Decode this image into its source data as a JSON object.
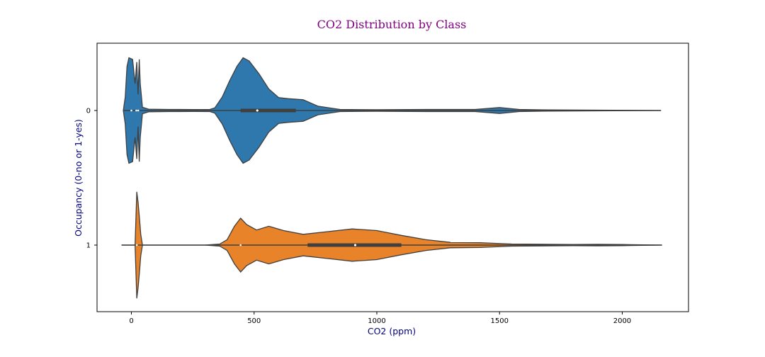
{
  "chart_data": {
    "type": "violin",
    "title": "CO2 Distribution by Class",
    "xlabel": "CO2 (ppm)",
    "ylabel": "Occupancy (0-no or 1-yes)",
    "xlim": [
      -140,
      2270
    ],
    "x_ticks": [
      0,
      500,
      1000,
      1500,
      2000
    ],
    "categories": [
      "0",
      "1"
    ],
    "grid": false,
    "orientation": "horizontal",
    "colors": {
      "0": "#2f78ad",
      "1": "#e8832a",
      "title": "#800080",
      "axis_label": "#000080",
      "outline": "#3f3f3f"
    },
    "violins": [
      {
        "category": "0",
        "color": "#2f78ad",
        "whisker": [
          -33,
          2158
        ],
        "box": {
          "q1": 445,
          "median": 513,
          "q3": 670
        },
        "density": [
          [
            -33,
            0.0
          ],
          [
            -25,
            0.25
          ],
          [
            -18,
            0.82
          ],
          [
            -10,
            0.98
          ],
          [
            5,
            0.95
          ],
          [
            15,
            0.5
          ],
          [
            22,
            0.9
          ],
          [
            27,
            0.3
          ],
          [
            32,
            0.95
          ],
          [
            36,
            0.5
          ],
          [
            45,
            0.06
          ],
          [
            70,
            0.025
          ],
          [
            150,
            0.02
          ],
          [
            250,
            0.018
          ],
          [
            320,
            0.02
          ],
          [
            340,
            0.05
          ],
          [
            370,
            0.25
          ],
          [
            400,
            0.55
          ],
          [
            430,
            0.82
          ],
          [
            455,
            0.98
          ],
          [
            480,
            0.92
          ],
          [
            520,
            0.68
          ],
          [
            560,
            0.4
          ],
          [
            600,
            0.24
          ],
          [
            640,
            0.22
          ],
          [
            700,
            0.2
          ],
          [
            760,
            0.08
          ],
          [
            850,
            0.02
          ],
          [
            1000,
            0.015
          ],
          [
            1200,
            0.02
          ],
          [
            1400,
            0.02
          ],
          [
            1500,
            0.055
          ],
          [
            1580,
            0.02
          ],
          [
            1700,
            0.01
          ],
          [
            1900,
            0.006
          ],
          [
            2158,
            0.0
          ]
        ],
        "outlier_markers": [
          0,
          20,
          28
        ]
      },
      {
        "category": "1",
        "color": "#e8832a",
        "whisker": [
          -40,
          2162
        ],
        "box": {
          "q1": 718,
          "median": 912,
          "q3": 1100
        },
        "density": [
          [
            -40,
            0.0
          ],
          [
            15,
            0.0
          ],
          [
            22,
            0.99
          ],
          [
            27,
            0.8
          ],
          [
            33,
            0.5
          ],
          [
            38,
            0.2
          ],
          [
            45,
            0.0
          ],
          [
            300,
            0.0
          ],
          [
            360,
            0.02
          ],
          [
            390,
            0.1
          ],
          [
            420,
            0.35
          ],
          [
            445,
            0.5
          ],
          [
            470,
            0.38
          ],
          [
            510,
            0.28
          ],
          [
            560,
            0.35
          ],
          [
            620,
            0.27
          ],
          [
            700,
            0.2
          ],
          [
            800,
            0.25
          ],
          [
            900,
            0.3
          ],
          [
            1000,
            0.27
          ],
          [
            1100,
            0.18
          ],
          [
            1200,
            0.1
          ],
          [
            1300,
            0.05
          ],
          [
            1420,
            0.045
          ],
          [
            1550,
            0.02
          ],
          [
            1700,
            0.015
          ],
          [
            1800,
            0.01
          ],
          [
            1900,
            0.015
          ],
          [
            2000,
            0.01
          ],
          [
            2162,
            0.0
          ]
        ],
        "outlier_markers": [
          22,
          445
        ]
      }
    ]
  }
}
